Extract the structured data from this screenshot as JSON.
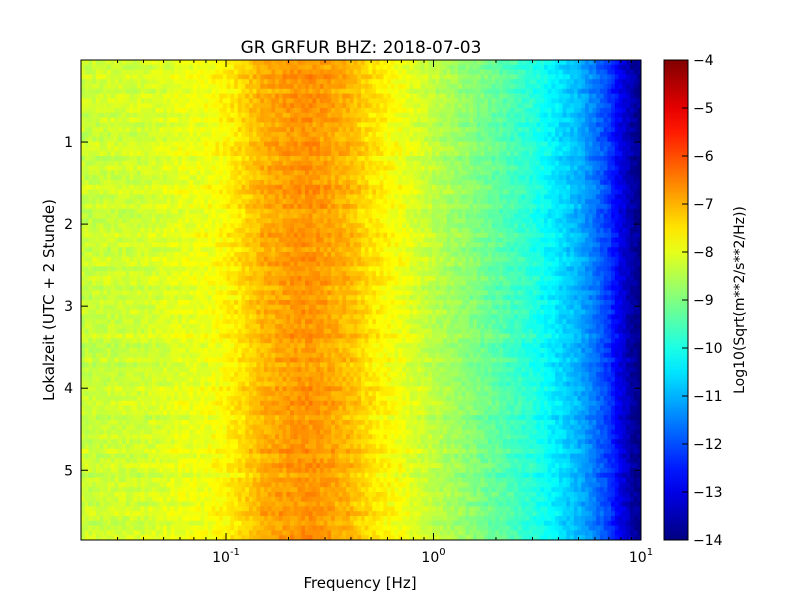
{
  "chart_data": {
    "type": "heatmap",
    "title": "GR GRFUR BHZ: 2018-07-03",
    "xlabel": "Frequency [Hz]",
    "ylabel": "Lokalzeit (UTC + 2 Stunde)",
    "x_scale": "log",
    "xlim": [
      0.02,
      10
    ],
    "ylim": [
      5.85,
      0
    ],
    "x_ticks": [
      {
        "value": 0.1,
        "base": "10",
        "exp": "-1"
      },
      {
        "value": 1,
        "base": "10",
        "exp": "0"
      },
      {
        "value": 10,
        "base": "10",
        "exp": "1"
      }
    ],
    "y_ticks": [
      {
        "value": 1,
        "label": "1"
      },
      {
        "value": 2,
        "label": "2"
      },
      {
        "value": 3,
        "label": "3"
      },
      {
        "value": 4,
        "label": "4"
      },
      {
        "value": 5,
        "label": "5"
      }
    ],
    "colormap": "jet",
    "colorbar": {
      "label": "Log10(Sqrt(m**2/s**2/Hz))",
      "min": -14,
      "max": -4,
      "ticks": [
        {
          "value": -4,
          "label": "−4"
        },
        {
          "value": -5,
          "label": "−5"
        },
        {
          "value": -6,
          "label": "−6"
        },
        {
          "value": -7,
          "label": "−7"
        },
        {
          "value": -8,
          "label": "−8"
        },
        {
          "value": -9,
          "label": "−9"
        },
        {
          "value": -10,
          "label": "−10"
        },
        {
          "value": -11,
          "label": "−11"
        },
        {
          "value": -12,
          "label": "−12"
        },
        {
          "value": -13,
          "label": "−13"
        },
        {
          "value": -14,
          "label": "−14"
        }
      ]
    },
    "spectrum_profile": [
      {
        "f": 0.02,
        "v": -8.3
      },
      {
        "f": 0.04,
        "v": -8.2
      },
      {
        "f": 0.06,
        "v": -8.0
      },
      {
        "f": 0.08,
        "v": -7.9
      },
      {
        "f": 0.1,
        "v": -7.7
      },
      {
        "f": 0.12,
        "v": -7.4
      },
      {
        "f": 0.15,
        "v": -7.0
      },
      {
        "f": 0.2,
        "v": -6.8
      },
      {
        "f": 0.25,
        "v": -6.7
      },
      {
        "f": 0.3,
        "v": -6.8
      },
      {
        "f": 0.4,
        "v": -7.1
      },
      {
        "f": 0.5,
        "v": -7.5
      },
      {
        "f": 0.7,
        "v": -7.9
      },
      {
        "f": 1.0,
        "v": -8.4
      },
      {
        "f": 1.5,
        "v": -8.9
      },
      {
        "f": 2.0,
        "v": -9.3
      },
      {
        "f": 3.0,
        "v": -9.9
      },
      {
        "f": 4.0,
        "v": -10.5
      },
      {
        "f": 5.0,
        "v": -11.0
      },
      {
        "f": 6.0,
        "v": -11.6
      },
      {
        "f": 7.0,
        "v": -12.2
      },
      {
        "f": 8.0,
        "v": -13.0
      },
      {
        "f": 9.0,
        "v": -13.6
      },
      {
        "f": 10.0,
        "v": -14.0
      }
    ]
  }
}
